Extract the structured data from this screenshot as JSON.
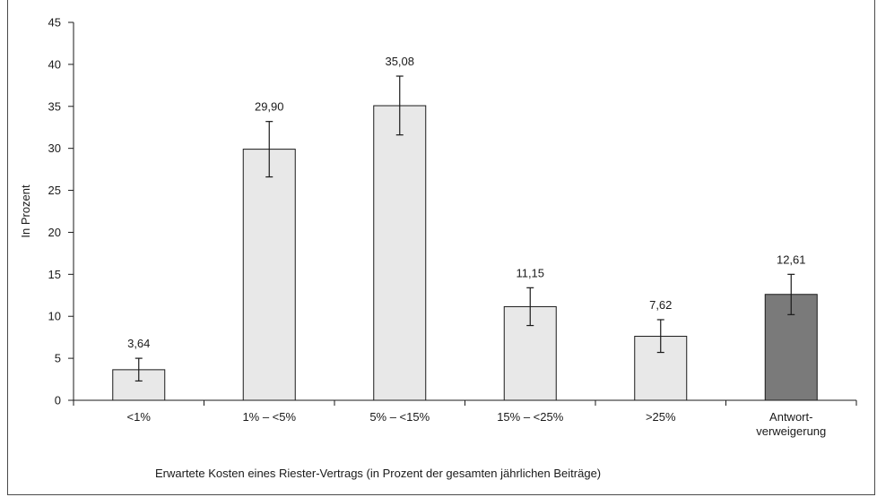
{
  "chart_data": {
    "type": "bar",
    "ylabel": "In Prozent",
    "xlabel": "Erwartete Kosten eines Riester-Vertrags (in Prozent der gesamten jährlichen Beiträge)",
    "ylim": [
      0,
      45
    ],
    "yticks": [
      "0",
      "5",
      "10",
      "15",
      "20",
      "25",
      "30",
      "35",
      "40",
      "45"
    ],
    "grid": false,
    "categories": [
      [
        "<1%"
      ],
      [
        "1% – <5%"
      ],
      [
        "5% – <15%"
      ],
      [
        "15% – <25%"
      ],
      [
        ">25%"
      ],
      [
        "Antwort-",
        "verweigerung"
      ]
    ],
    "values": [
      3.64,
      29.9,
      35.08,
      11.15,
      7.62,
      12.61
    ],
    "value_labels": [
      "3,64",
      "29,90",
      "35,08",
      "11,15",
      "7,62",
      "12,61"
    ],
    "error_low": [
      2.3,
      26.6,
      31.6,
      8.9,
      5.7,
      10.2
    ],
    "error_high": [
      5.0,
      33.2,
      38.6,
      13.4,
      9.6,
      15.0
    ],
    "bar_colors": [
      "#e8e8e8",
      "#e8e8e8",
      "#e8e8e8",
      "#e8e8e8",
      "#e8e8e8",
      "#7a7a7a"
    ],
    "bar_stroke": "#1a1a1a"
  }
}
